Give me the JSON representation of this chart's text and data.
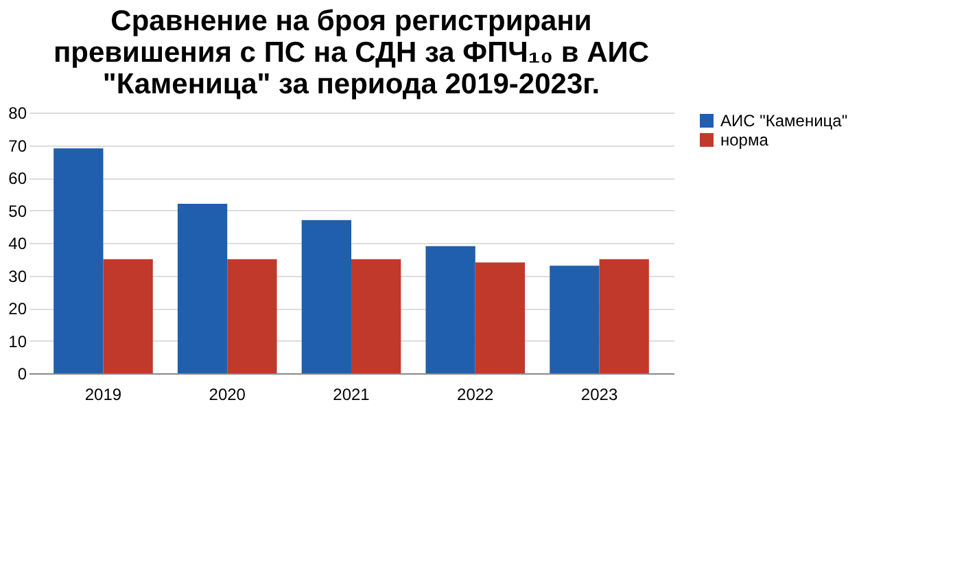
{
  "chart_data": {
    "type": "bar",
    "title": [
      "Сравнение на броя регистрирани",
      "превишения с ПС на СДН за ФПЧ₁₀ в АИС",
      "\"Каменица\" за периода 2019-2023г."
    ],
    "categories": [
      "2019",
      "2020",
      "2021",
      "2022",
      "2023"
    ],
    "series": [
      {
        "name": "АИС \"Каменица\"",
        "color": "#1f5fad",
        "values": [
          69,
          52,
          47,
          39,
          33
        ]
      },
      {
        "name": "норма",
        "color": "#c0392b",
        "values": [
          35,
          35,
          35,
          34,
          35
        ]
      }
    ],
    "ylim": [
      0,
      80
    ],
    "yticks": [
      0,
      10,
      20,
      30,
      40,
      50,
      60,
      70,
      80
    ],
    "grid": "y",
    "legend": "right"
  }
}
